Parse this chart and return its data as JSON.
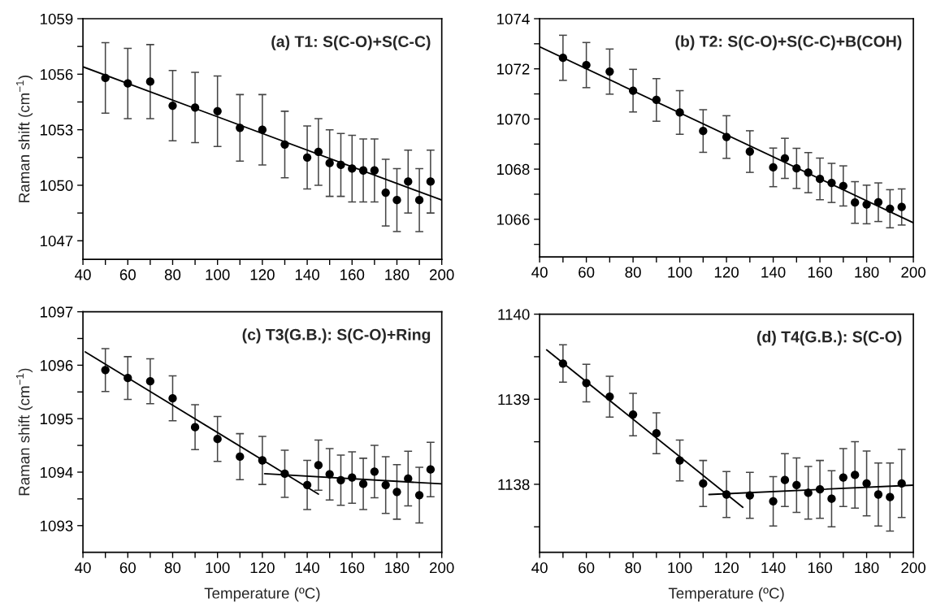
{
  "chart_data": [
    {
      "type": "scatter",
      "title": "(a) T1: S(C-O)+S(C-C)",
      "ylabel": "Raman shift (cm$^{−1}$)",
      "xlim": [
        40,
        200
      ],
      "ylim": [
        1046,
        1059
      ],
      "xticks": [
        40,
        {
          "value": 50,
          "label": null
        },
        60,
        {
          "value": 70,
          "label": null
        },
        80,
        {
          "value": 90,
          "label": null
        },
        100,
        {
          "value": 110,
          "label": null
        },
        120,
        {
          "value": 130,
          "label": null
        },
        140,
        {
          "value": 150,
          "label": null
        },
        160,
        {
          "value": 170,
          "label": null
        },
        180,
        {
          "value": 190,
          "label": null
        },
        200
      ],
      "yticks": [
        1047,
        {
          "value": 1048.5,
          "label": null
        },
        1050,
        {
          "value": 1051.5,
          "label": null
        },
        1053,
        {
          "value": 1054.5,
          "label": null
        },
        1056,
        {
          "value": 1057.5,
          "label": null
        },
        1059
      ],
      "series": [
        {
          "marker": "circle",
          "color": "#000000",
          "x": [
            50,
            60,
            70,
            80,
            90,
            100,
            110,
            120,
            130,
            140,
            145,
            150,
            155,
            160,
            165,
            170,
            175,
            180,
            185,
            190,
            195
          ],
          "values": [
            1055.8,
            1055.5,
            1055.6,
            1054.3,
            1054.2,
            1054.0,
            1053.1,
            1053.0,
            1052.2,
            1051.5,
            1051.8,
            1051.2,
            1051.1,
            1050.9,
            1050.8,
            1050.8,
            1049.6,
            1049.2,
            1050.2,
            1049.2,
            1050.2
          ],
          "errors": [
            1.9,
            1.9,
            2.0,
            1.9,
            1.9,
            1.9,
            1.8,
            1.9,
            1.8,
            1.7,
            1.8,
            1.8,
            1.7,
            1.8,
            1.7,
            1.7,
            1.8,
            1.7,
            1.7,
            1.7,
            1.7
          ]
        },
        {
          "type": "line",
          "color": "#000000",
          "x": [
            40,
            200
          ],
          "values": [
            1056.4,
            1049.2
          ]
        }
      ]
    },
    {
      "type": "scatter",
      "title": "(b) T2: S(C-O)+S(C-C)+B(COH)",
      "xlim": [
        40,
        200
      ],
      "ylim": [
        1064.5,
        1074
      ],
      "xticks": [
        40,
        {
          "value": 50,
          "label": null
        },
        60,
        {
          "value": 70,
          "label": null
        },
        80,
        {
          "value": 90,
          "label": null
        },
        100,
        {
          "value": 110,
          "label": null
        },
        120,
        {
          "value": 130,
          "label": null
        },
        140,
        {
          "value": 150,
          "label": null
        },
        160,
        {
          "value": 170,
          "label": null
        },
        180,
        {
          "value": 190,
          "label": null
        },
        200
      ],
      "yticks": [
        {
          "value": 1065,
          "label": null
        },
        1066,
        {
          "value": 1067,
          "label": null
        },
        1068,
        {
          "value": 1069,
          "label": null
        },
        1070,
        {
          "value": 1071,
          "label": null
        },
        1072,
        {
          "value": 1073,
          "label": null
        },
        1074
      ],
      "series": [
        {
          "marker": "circle",
          "color": "#000000",
          "x": [
            50,
            60,
            70,
            80,
            90,
            100,
            110,
            120,
            130,
            140,
            145,
            150,
            155,
            160,
            165,
            170,
            175,
            180,
            185,
            190,
            195
          ],
          "values": [
            1072.44,
            1072.15,
            1071.89,
            1071.13,
            1070.76,
            1070.26,
            1069.52,
            1069.28,
            1068.7,
            1068.07,
            1068.43,
            1068.03,
            1067.86,
            1067.61,
            1067.45,
            1067.33,
            1066.67,
            1066.59,
            1066.68,
            1066.42,
            1066.49
          ],
          "errors": [
            0.9,
            0.9,
            0.9,
            0.85,
            0.85,
            0.87,
            0.85,
            0.85,
            0.83,
            0.77,
            0.8,
            0.8,
            0.8,
            0.83,
            0.78,
            0.8,
            0.83,
            0.77,
            0.77,
            0.76,
            0.72
          ]
        },
        {
          "type": "line",
          "color": "#000000",
          "x": [
            40,
            200
          ],
          "values": [
            1072.88,
            1065.86
          ]
        }
      ]
    },
    {
      "type": "scatter",
      "title": "(c) T3(G.B.): S(C-O)+Ring",
      "xlabel": "Temperature (ºC)",
      "ylabel": "Raman shift (cm$^{−1}$)",
      "xlim": [
        40,
        200
      ],
      "ylim": [
        1092.5,
        1097
      ],
      "xticks": [
        40,
        {
          "value": 50,
          "label": null
        },
        60,
        {
          "value": 70,
          "label": null
        },
        80,
        {
          "value": 90,
          "label": null
        },
        100,
        {
          "value": 110,
          "label": null
        },
        120,
        {
          "value": 130,
          "label": null
        },
        140,
        {
          "value": 150,
          "label": null
        },
        160,
        {
          "value": 170,
          "label": null
        },
        180,
        {
          "value": 190,
          "label": null
        },
        200
      ],
      "yticks": [
        1093,
        {
          "value": 1093.5,
          "label": null
        },
        1094,
        {
          "value": 1094.5,
          "label": null
        },
        1095,
        {
          "value": 1095.5,
          "label": null
        },
        1096,
        {
          "value": 1096.5,
          "label": null
        },
        1097
      ],
      "series": [
        {
          "marker": "circle",
          "color": "#000000",
          "x": [
            50,
            60,
            70,
            80,
            90,
            100,
            110,
            120,
            130,
            140,
            145,
            150,
            155,
            160,
            165,
            170,
            175,
            180,
            185,
            190,
            195
          ],
          "values": [
            1095.91,
            1095.76,
            1095.7,
            1095.38,
            1094.84,
            1094.62,
            1094.29,
            1094.22,
            1093.97,
            1093.76,
            1094.13,
            1093.96,
            1093.85,
            1093.9,
            1093.78,
            1094.01,
            1093.76,
            1093.63,
            1093.88,
            1093.57,
            1094.05
          ],
          "errors": [
            0.4,
            0.4,
            0.42,
            0.42,
            0.42,
            0.42,
            0.43,
            0.45,
            0.44,
            0.46,
            0.47,
            0.48,
            0.47,
            0.48,
            0.48,
            0.49,
            0.53,
            0.51,
            0.51,
            0.52,
            0.51
          ]
        },
        {
          "type": "line",
          "color": "#000000",
          "x": [
            41,
            145
          ],
          "values": [
            1096.25,
            1093.59
          ]
        },
        {
          "type": "line",
          "color": "#000000",
          "x": [
            121,
            200
          ],
          "values": [
            1093.97,
            1093.78
          ]
        }
      ]
    },
    {
      "type": "scatter",
      "title": "(d) T4(G.B.): S(C-O)",
      "xlabel": "Temperature (ºC)",
      "xlim": [
        40,
        200
      ],
      "ylim": [
        1137.2,
        1140
      ],
      "xticks": [
        40,
        {
          "value": 50,
          "label": null
        },
        60,
        {
          "value": 70,
          "label": null
        },
        80,
        {
          "value": 90,
          "label": null
        },
        100,
        {
          "value": 110,
          "label": null
        },
        120,
        {
          "value": 130,
          "label": null
        },
        140,
        {
          "value": 150,
          "label": null
        },
        160,
        {
          "value": 170,
          "label": null
        },
        180,
        {
          "value": 190,
          "label": null
        },
        200
      ],
      "yticks": [
        {
          "value": 1137.5,
          "label": null
        },
        1138,
        {
          "value": 1138.5,
          "label": null
        },
        1139,
        {
          "value": 1139.5,
          "label": null
        },
        1140
      ],
      "series": [
        {
          "marker": "circle",
          "color": "#000000",
          "x": [
            50,
            60,
            70,
            80,
            90,
            100,
            110,
            120,
            130,
            140,
            145,
            150,
            155,
            160,
            165,
            170,
            175,
            180,
            185,
            190,
            195
          ],
          "values": [
            1139.42,
            1139.19,
            1139.03,
            1138.82,
            1138.6,
            1138.28,
            1138.01,
            1137.88,
            1137.87,
            1137.8,
            1138.05,
            1137.99,
            1137.9,
            1137.94,
            1137.83,
            1138.08,
            1138.11,
            1138.01,
            1137.88,
            1137.85,
            1138.01
          ],
          "errors": [
            0.22,
            0.22,
            0.24,
            0.25,
            0.24,
            0.24,
            0.27,
            0.27,
            0.27,
            0.29,
            0.31,
            0.32,
            0.31,
            0.34,
            0.33,
            0.34,
            0.39,
            0.38,
            0.37,
            0.4,
            0.4
          ]
        },
        {
          "type": "line",
          "color": "#000000",
          "x": [
            43,
            127
          ],
          "values": [
            1139.58,
            1137.73
          ]
        },
        {
          "type": "line",
          "color": "#000000",
          "x": [
            112.5,
            200
          ],
          "values": [
            1137.88,
            1137.99
          ]
        }
      ]
    }
  ]
}
